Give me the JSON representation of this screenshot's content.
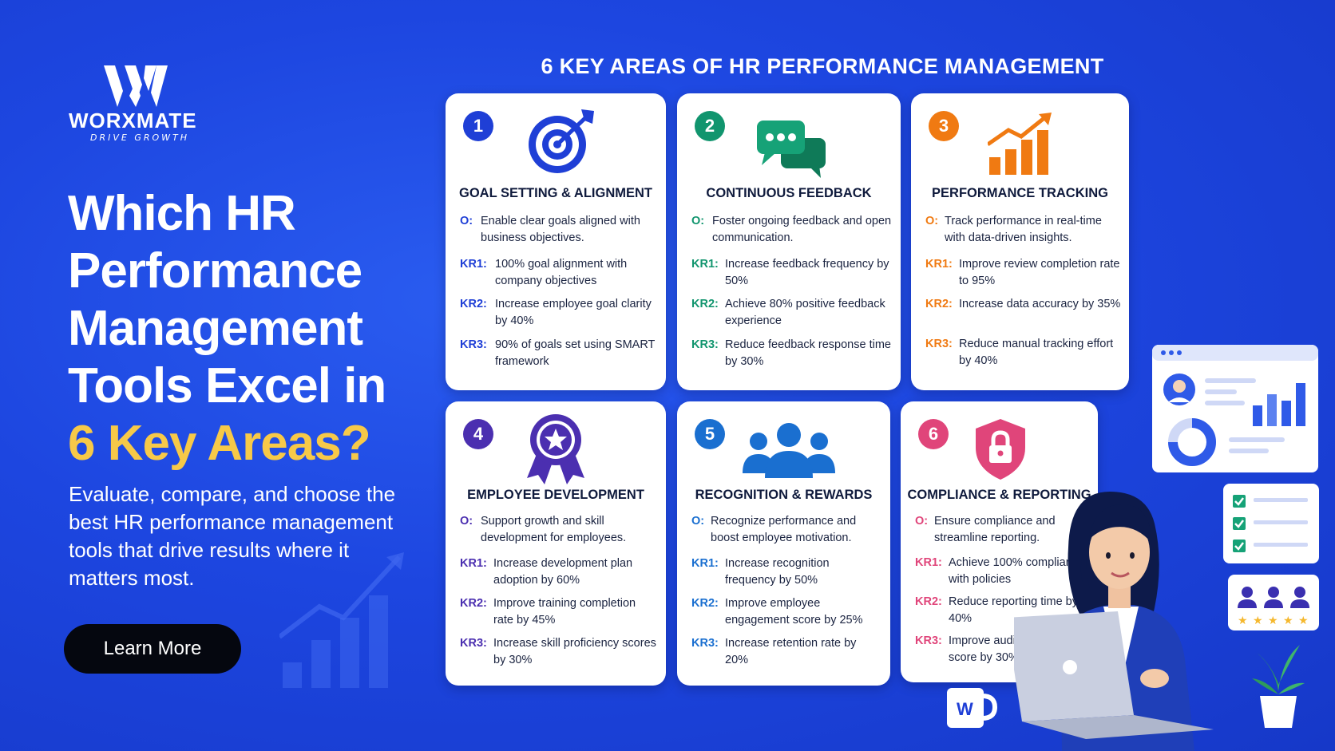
{
  "brand": {
    "name": "WORXMATE",
    "tagline": "DRIVE GROWTH"
  },
  "hero": {
    "title_lines": [
      "Which HR",
      "Performance",
      "Management",
      "Tools Excel in"
    ],
    "title_highlight": "6 Key Areas?",
    "subtitle": "Evaluate, compare, and choose the best HR performance management tools that drive results where it matters most.",
    "cta_label": "Learn More"
  },
  "section_title": "6 KEY AREAS OF HR PERFORMANCE MANAGEMENT",
  "colors": {
    "background": "#1d46e0",
    "highlight": "#f7c948",
    "area1": "#1f3fd6",
    "area2": "#11956e",
    "area3": "#f07a12",
    "area4": "#4b2fb0",
    "area5": "#1a6fd0",
    "area6": "#e0457a"
  },
  "areas": [
    {
      "number": "1",
      "title": "GOAL SETTING & ALIGNMENT",
      "icon": "target-icon",
      "objective_label": "O:",
      "objective": "Enable clear goals aligned with business objectives.",
      "results": [
        {
          "label": "KR1:",
          "text": "100% goal alignment with company objectives"
        },
        {
          "label": "KR2:",
          "text": "Increase employee goal clarity by 40%"
        },
        {
          "label": "KR3:",
          "text": "90% of goals set using SMART framework"
        }
      ]
    },
    {
      "number": "2",
      "title": "CONTINUOUS FEEDBACK",
      "icon": "chat-bubbles-icon",
      "objective_label": "O:",
      "objective": "Foster ongoing feedback and open communication.",
      "results": [
        {
          "label": "KR1:",
          "text": "Increase feedback frequency by 50%"
        },
        {
          "label": "KR2:",
          "text": "Achieve 80% positive feedback experience"
        },
        {
          "label": "KR3:",
          "text": "Reduce feedback response time by 30%"
        }
      ]
    },
    {
      "number": "3",
      "title": "PERFORMANCE TRACKING",
      "icon": "growth-chart-icon",
      "objective_label": "O:",
      "objective": "Track performance in real-time with data-driven insights.",
      "results": [
        {
          "label": "KR1:",
          "text": "Improve review completion rate to 95%"
        },
        {
          "label": "KR2:",
          "text": "Increase data accuracy by 35%"
        },
        {
          "label": "KR3:",
          "text": "Reduce manual tracking effort by 40%"
        }
      ]
    },
    {
      "number": "4",
      "title": "EMPLOYEE DEVELOPMENT",
      "icon": "award-ribbon-icon",
      "objective_label": "O:",
      "objective": "Support growth and skill development for employees.",
      "results": [
        {
          "label": "KR1:",
          "text": "Increase development plan adoption by 60%"
        },
        {
          "label": "KR2:",
          "text": "Improve training completion rate by 45%"
        },
        {
          "label": "KR3:",
          "text": "Increase skill proficiency scores by 30%"
        }
      ]
    },
    {
      "number": "5",
      "title": "RECOGNITION & REWARDS",
      "icon": "team-icon",
      "objective_label": "O:",
      "objective": "Recognize performance and boost employee motivation.",
      "results": [
        {
          "label": "KR1:",
          "text": "Increase recognition frequency by 50%"
        },
        {
          "label": "KR2:",
          "text": "Improve employee engagement score by 25%"
        },
        {
          "label": "KR3:",
          "text": "Increase retention rate by 20%"
        }
      ]
    },
    {
      "number": "6",
      "title": "COMPLIANCE & REPORTING",
      "icon": "shield-lock-icon",
      "objective_label": "O:",
      "objective": "Ensure compliance and streamline reporting.",
      "results": [
        {
          "label": "KR1:",
          "text": "Achieve 100% compliance with policies"
        },
        {
          "label": "KR2:",
          "text": "Reduce reporting time by 40%"
        },
        {
          "label": "KR3:",
          "text": "Improve audit readiness score by 30%"
        }
      ]
    }
  ],
  "illustration": {
    "mug_letter": "W",
    "rating_stars": 5
  }
}
